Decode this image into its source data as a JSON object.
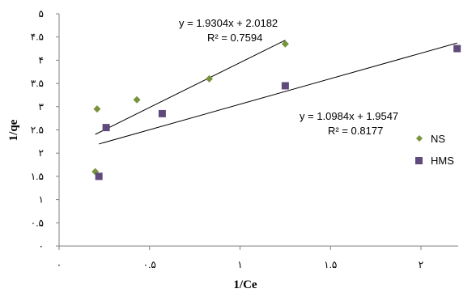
{
  "chart_data": {
    "type": "scatter",
    "xlabel": "1/Ce",
    "ylabel": "1/qe",
    "xlim": [
      0,
      2.2
    ],
    "ylim": [
      0,
      5
    ],
    "x_ticks": [
      {
        "value": 0,
        "label": "۰"
      },
      {
        "value": 0.5,
        "label": "۰.۵"
      },
      {
        "value": 1,
        "label": "۱"
      },
      {
        "value": 1.5,
        "label": "۱.۵"
      },
      {
        "value": 2,
        "label": "۲"
      }
    ],
    "y_ticks": [
      {
        "value": 0,
        "label": "۰"
      },
      {
        "value": 0.5,
        "label": "۰.۵"
      },
      {
        "value": 1,
        "label": "۱"
      },
      {
        "value": 1.5,
        "label": "۱.۵"
      },
      {
        "value": 2,
        "label": "۲"
      },
      {
        "value": 2.5,
        "label": "۲.۵"
      },
      {
        "value": 3,
        "label": "۳"
      },
      {
        "value": 3.5,
        "label": "۳.۵"
      },
      {
        "value": 4,
        "label": "۴"
      },
      {
        "value": 4.5,
        "label": "۴.۵"
      },
      {
        "value": 5,
        "label": "۵"
      }
    ],
    "grid": false,
    "legend_position": "right",
    "series": [
      {
        "name": "NS",
        "marker": "diamond",
        "color": "#77933c",
        "points": [
          [
            0.2,
            1.6
          ],
          [
            0.21,
            2.95
          ],
          [
            0.43,
            3.15
          ],
          [
            0.83,
            3.6
          ],
          [
            1.25,
            4.35
          ]
        ],
        "trendline": {
          "slope": 1.9304,
          "intercept": 2.0182,
          "x_range": [
            0.2,
            1.25
          ],
          "equation": "y = 1.9304x + 2.0182",
          "r2": "R² = 0.7594"
        }
      },
      {
        "name": "HMS",
        "marker": "square",
        "color": "#604a7b",
        "points": [
          [
            0.22,
            1.5
          ],
          [
            0.26,
            2.55
          ],
          [
            0.57,
            2.85
          ],
          [
            1.25,
            3.45
          ],
          [
            2.2,
            4.25
          ]
        ],
        "trendline": {
          "slope": 1.0984,
          "intercept": 1.9547,
          "x_range": [
            0.22,
            2.2
          ],
          "equation": "y = 1.0984x + 1.9547",
          "r2": "R² = 0.8177"
        }
      }
    ]
  }
}
